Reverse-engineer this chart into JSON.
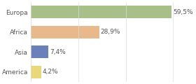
{
  "categories": [
    "Europa",
    "Africa",
    "Asia",
    "America"
  ],
  "values": [
    59.5,
    28.9,
    7.4,
    4.2
  ],
  "labels": [
    "59,5%",
    "28,9%",
    "7,4%",
    "4,2%"
  ],
  "bar_colors": [
    "#a8bf8a",
    "#e8b98a",
    "#6b7fba",
    "#e8d87a"
  ],
  "background_color": "#ffffff",
  "xlim": [
    0,
    68
  ],
  "bar_height": 0.62,
  "label_fontsize": 6.5,
  "tick_fontsize": 6.5
}
